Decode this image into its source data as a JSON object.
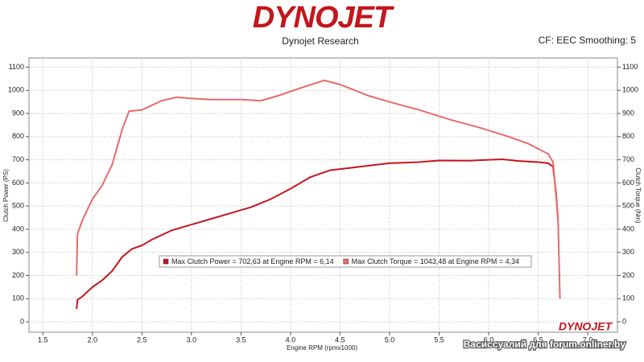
{
  "chart_data": {
    "type": "line",
    "logo": "DYNOJET",
    "title": "Dynojet Research",
    "subtitle": "CF: EEC Smoothing: 5",
    "xlabel": "Engine RPM (rpmx1000)",
    "ylabel": "Clutch Power (PS)",
    "y2label": "Clutch Torque (Nm)",
    "watermark": "Васиссуалий для forum.onliner.by",
    "xlim": [
      1.36,
      7.3
    ],
    "xticks": [
      1.5,
      {
        "value": 2,
        "label": "2.0"
      },
      2.5,
      {
        "value": 3,
        "label": "3.0"
      },
      3.5,
      {
        "value": 4,
        "label": "4.0"
      },
      4.5,
      {
        "value": 5,
        "label": "5.0"
      },
      5.5,
      {
        "value": 6,
        "label": "6.0"
      },
      6.5,
      {
        "value": 7,
        "label": "7.0"
      }
    ],
    "ylim": [
      -45,
      1140
    ],
    "yticks": [
      0,
      100,
      200,
      300,
      400,
      500,
      600,
      700,
      800,
      900,
      1000,
      1100
    ],
    "y2lim": [
      -45,
      1140
    ],
    "y2ticks": [
      0,
      100,
      200,
      300,
      400,
      500,
      600,
      700,
      800,
      900,
      1000,
      1100
    ],
    "grid": true,
    "series": [
      {
        "name": "Max Clutch Power = 702,63 at Engine RPM = 6,14",
        "color": "#c4161c",
        "x": [
          1.84,
          1.85,
          1.9,
          2.0,
          2.1,
          2.2,
          2.3,
          2.4,
          2.5,
          2.6,
          2.8,
          3.0,
          3.2,
          3.4,
          3.6,
          3.8,
          4.0,
          4.2,
          4.4,
          4.6,
          4.8,
          5.0,
          5.3,
          5.5,
          5.8,
          6.0,
          6.14,
          6.3,
          6.5,
          6.6,
          6.65,
          6.68,
          6.7
        ],
        "values": [
          55,
          95,
          110,
          150,
          180,
          220,
          280,
          315,
          330,
          355,
          395,
          420,
          445,
          470,
          495,
          530,
          575,
          625,
          655,
          665,
          675,
          685,
          690,
          697,
          696,
          700,
          702,
          695,
          690,
          685,
          670,
          560,
          440
        ]
      },
      {
        "name": "Max Clutch Torque = 1043,48 at Engine RPM = 4,34",
        "color": "#e86a6a",
        "axis": "y2",
        "x": [
          1.84,
          1.85,
          1.9,
          2.0,
          2.1,
          2.2,
          2.3,
          2.37,
          2.5,
          2.7,
          2.85,
          3.0,
          3.2,
          3.5,
          3.7,
          3.9,
          4.1,
          4.34,
          4.5,
          4.8,
          5.0,
          5.3,
          5.6,
          5.9,
          6.2,
          6.4,
          6.6,
          6.65,
          6.7,
          6.72
        ],
        "values": [
          200,
          380,
          440,
          530,
          590,
          680,
          830,
          910,
          915,
          955,
          970,
          965,
          960,
          960,
          955,
          980,
          1010,
          1043,
          1025,
          975,
          950,
          915,
          875,
          840,
          800,
          770,
          725,
          690,
          450,
          100
        ]
      }
    ]
  }
}
